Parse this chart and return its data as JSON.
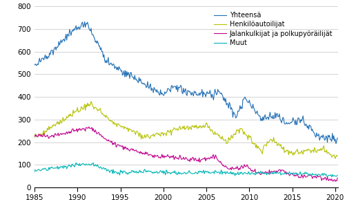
{
  "title": "",
  "xlabel": "",
  "ylabel": "",
  "xlim": [
    1985.0,
    2020.333
  ],
  "ylim": [
    0,
    800
  ],
  "yticks": [
    0,
    100,
    200,
    300,
    400,
    500,
    600,
    700,
    800
  ],
  "xticks": [
    1985,
    1990,
    1995,
    2000,
    2005,
    2010,
    2015,
    2020
  ],
  "legend_labels": [
    "Yhteensä",
    "Henkilöautoilijat",
    "Jalankulkijat ja polkupyöräilijät",
    "Muut"
  ],
  "colors": [
    "#1f6eb5",
    "#b5c200",
    "#c0008c",
    "#00b5b5"
  ],
  "line_width": 0.8,
  "background_color": "#ffffff",
  "grid_color": "#cccccc",
  "figsize": [
    5.0,
    3.08
  ],
  "dpi": 100
}
